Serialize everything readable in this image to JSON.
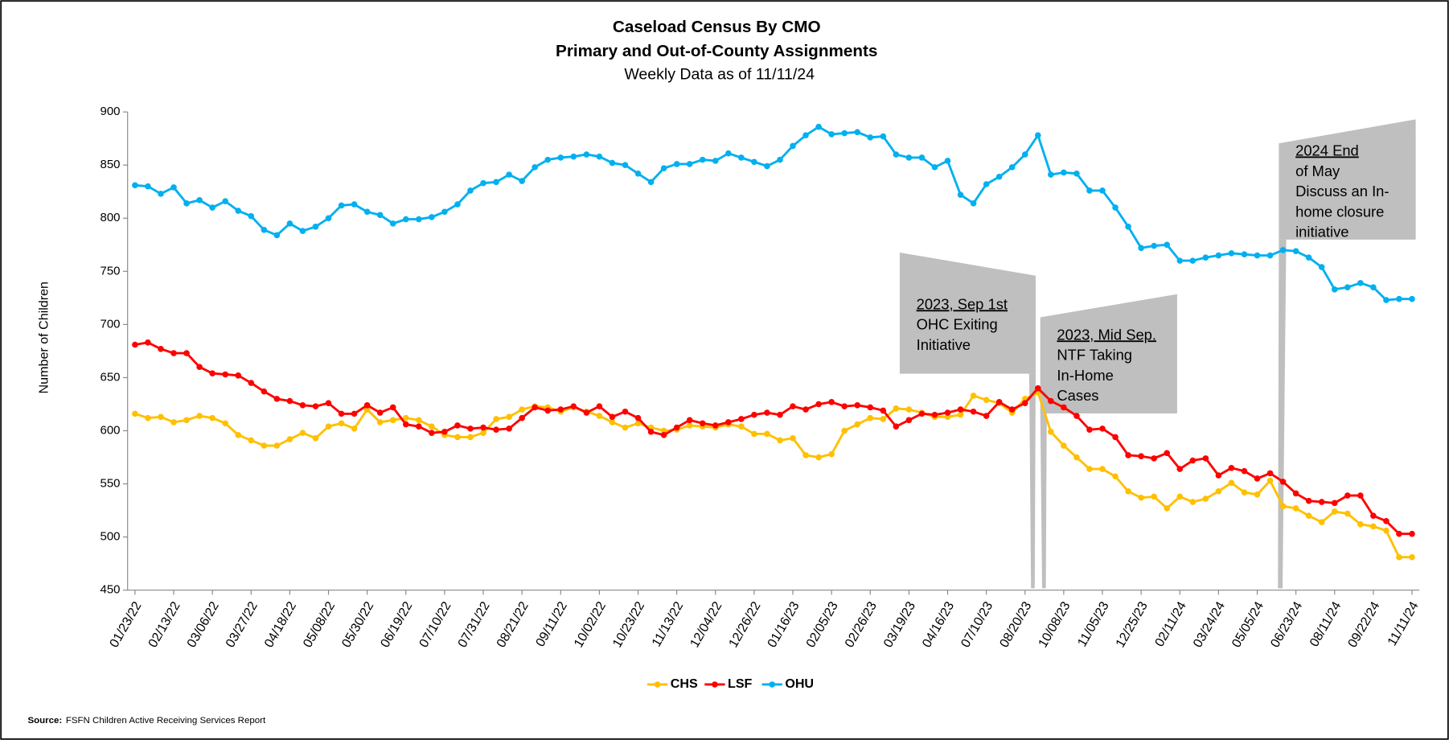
{
  "chart_data": {
    "type": "line",
    "title": "Caseload Census By CMO",
    "title2": "Primary and Out-of-County Assignments",
    "subtitle": "Weekly Data as of 11/11/24",
    "ylabel": "Number of Children",
    "categories": [
      "01/23/22",
      null,
      null,
      "02/13/22",
      null,
      null,
      "03/06/22",
      null,
      null,
      "03/27/22",
      null,
      null,
      "04/18/22",
      null,
      null,
      "05/08/22",
      null,
      null,
      "05/30/22",
      null,
      null,
      "06/19/22",
      null,
      null,
      "07/10/22",
      null,
      null,
      "07/31/22",
      null,
      null,
      "08/21/22",
      null,
      null,
      "09/11/22",
      null,
      null,
      "10/02/22",
      null,
      null,
      "10/23/22",
      null,
      null,
      "11/13/22",
      null,
      null,
      "12/04/22",
      null,
      null,
      "12/26/22",
      null,
      null,
      "01/16/23",
      null,
      null,
      "02/05/23",
      null,
      null,
      "02/26/23",
      null,
      null,
      "03/19/23",
      null,
      null,
      "04/16/23",
      null,
      null,
      "07/10/23",
      null,
      null,
      "08/20/23",
      null,
      null,
      "10/08/23",
      null,
      null,
      "11/05/23",
      null,
      null,
      "12/25/23",
      null,
      null,
      "02/11/24",
      null,
      null,
      "03/24/24",
      null,
      null,
      "05/05/24",
      null,
      null,
      "06/23/24",
      null,
      null,
      "08/11/24",
      null,
      null,
      "09/22/24",
      null,
      null,
      "11/11/24"
    ],
    "series": [
      {
        "name": "CHS",
        "color": "#FFC000",
        "values": [
          616,
          612,
          613,
          608,
          610,
          614,
          612,
          607,
          596,
          591,
          586,
          586,
          592,
          598,
          593,
          604,
          607,
          602,
          620,
          608,
          610,
          612,
          610,
          604,
          596,
          594,
          594,
          598,
          611,
          613,
          620,
          623,
          622,
          618,
          622,
          618,
          614,
          608,
          603,
          607,
          603,
          600,
          601,
          605,
          604,
          603,
          606,
          604,
          597,
          597,
          591,
          593,
          577,
          575,
          578,
          600,
          606,
          612,
          611,
          621,
          620,
          617,
          613,
          613,
          615,
          633,
          629,
          626,
          617,
          630,
          636,
          599,
          586,
          575,
          564,
          564,
          557,
          543,
          537,
          538,
          527,
          538,
          533,
          536,
          543,
          551,
          542,
          540,
          553,
          529,
          527,
          520,
          514,
          524,
          522,
          512,
          510,
          506,
          481,
          481
        ]
      },
      {
        "name": "LSF",
        "color": "#FF0000",
        "values": [
          681,
          683,
          677,
          673,
          673,
          660,
          654,
          653,
          652,
          645,
          637,
          630,
          628,
          624,
          623,
          626,
          616,
          616,
          624,
          617,
          622,
          606,
          604,
          598,
          599,
          605,
          602,
          603,
          601,
          602,
          612,
          622,
          619,
          620,
          623,
          617,
          623,
          613,
          618,
          612,
          599,
          596,
          603,
          610,
          607,
          605,
          608,
          611,
          615,
          617,
          615,
          623,
          620,
          625,
          627,
          623,
          624,
          622,
          619,
          604,
          610,
          616,
          615,
          617,
          620,
          618,
          614,
          627,
          620,
          626,
          640,
          628,
          622,
          614,
          601,
          602,
          594,
          577,
          576,
          574,
          579,
          564,
          572,
          574,
          558,
          565,
          562,
          555,
          560,
          552,
          541,
          534,
          533,
          532,
          539,
          539,
          520,
          515,
          503,
          503
        ]
      },
      {
        "name": "OHU",
        "color": "#00B0F0",
        "values": [
          831,
          830,
          823,
          829,
          814,
          817,
          810,
          816,
          807,
          802,
          789,
          784,
          795,
          788,
          792,
          800,
          812,
          813,
          806,
          803,
          795,
          799,
          799,
          801,
          806,
          813,
          826,
          833,
          834,
          841,
          835,
          848,
          855,
          857,
          858,
          860,
          858,
          852,
          850,
          842,
          834,
          847,
          851,
          851,
          855,
          854,
          861,
          857,
          853,
          849,
          855,
          868,
          878,
          886,
          879,
          880,
          881,
          876,
          877,
          860,
          857,
          857,
          848,
          854,
          822,
          814,
          832,
          839,
          848,
          860,
          878,
          841,
          843,
          842,
          826,
          826,
          810,
          792,
          772,
          774,
          775,
          760,
          760,
          763,
          765,
          767,
          766,
          765,
          765,
          770,
          769,
          763,
          754,
          733,
          735,
          739,
          735,
          723,
          724,
          724
        ]
      }
    ],
    "ylim": [
      450,
      900
    ],
    "yticks": [
      450,
      500,
      550,
      600,
      650,
      700,
      750,
      800,
      850,
      900
    ],
    "grid": false,
    "legend": "bottom",
    "annotations": [
      {
        "heading": "2023, Sep 1st",
        "lines": [
          "OHC Exiting",
          "Initiative"
        ]
      },
      {
        "heading": "2023, Mid Sep.",
        "lines": [
          "NTF Taking",
          "In-Home",
          "Cases"
        ]
      },
      {
        "heading": "2024 End",
        "lines": [
          "of May",
          "Discuss an In-",
          "home closure",
          "initiative"
        ]
      }
    ],
    "source_label": "Source:",
    "source": "FSFN Children Active Receiving Services Report"
  }
}
